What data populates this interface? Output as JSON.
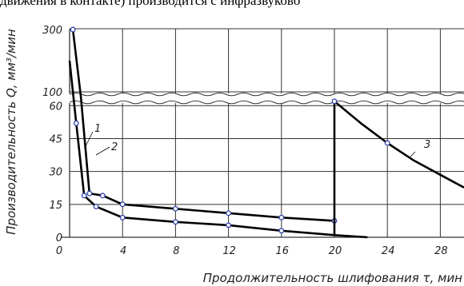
{
  "top_fragment": "движения в контакте) производится с инфразвуково",
  "chart_data": {
    "type": "line",
    "title": "",
    "xlabel": "Продолжительность шлифования τ, мин",
    "ylabel": "Производительность Q, мм³/мин",
    "x_ticks": [
      0,
      4,
      8,
      12,
      16,
      20,
      24,
      28
    ],
    "x_tick_labels": [
      "0",
      "4",
      "8",
      "12",
      "16",
      "20",
      "24",
      "28"
    ],
    "xlim": [
      0,
      28
    ],
    "y_ticks_lower": [
      0,
      15,
      30,
      45,
      60
    ],
    "y_ticks_upper": [
      100,
      300
    ],
    "y_tick_labels": [
      "0",
      "15",
      "30",
      "45",
      "60",
      "100",
      "300"
    ],
    "y_break": [
      63,
      100
    ],
    "grid": true,
    "series": [
      {
        "name": "1",
        "points": [
          [
            0.25,
            300
          ],
          [
            0.85,
            75
          ],
          [
            1.5,
            20
          ],
          [
            2.5,
            19
          ],
          [
            4,
            15
          ],
          [
            8,
            13
          ],
          [
            12,
            11
          ],
          [
            16,
            9
          ],
          [
            20,
            7.5
          ]
        ],
        "markers": [
          [
            0.25,
            300
          ],
          [
            1.5,
            20
          ],
          [
            2.5,
            19
          ],
          [
            4,
            15
          ],
          [
            8,
            13
          ],
          [
            12,
            11
          ],
          [
            16,
            9
          ],
          [
            20,
            7.5
          ]
        ]
      },
      {
        "name": "2",
        "points": [
          [
            0,
            200
          ],
          [
            0.5,
            52
          ],
          [
            1.1,
            19
          ],
          [
            2,
            14
          ],
          [
            4,
            9
          ],
          [
            8,
            7
          ],
          [
            12,
            5.5
          ],
          [
            16,
            3
          ],
          [
            20,
            1
          ],
          [
            22.5,
            0
          ]
        ],
        "markers": [
          [
            0.5,
            52
          ],
          [
            1.1,
            19
          ],
          [
            2,
            14
          ],
          [
            4,
            9
          ],
          [
            8,
            7
          ],
          [
            12,
            5.5
          ],
          [
            16,
            3
          ]
        ]
      },
      {
        "name": "3",
        "points": [
          [
            20,
            0.9
          ],
          [
            20,
            62
          ],
          [
            22,
            52
          ],
          [
            24,
            43
          ],
          [
            26,
            35
          ],
          [
            28,
            28.5
          ],
          [
            30,
            22
          ]
        ],
        "markers": [
          [
            20,
            62
          ],
          [
            24,
            43
          ]
        ]
      }
    ],
    "annotations": [
      "1",
      "2",
      "3"
    ]
  }
}
